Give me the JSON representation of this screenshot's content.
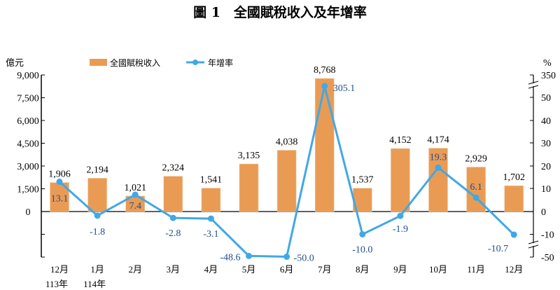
{
  "chart_data": {
    "type": "bar+line",
    "title": "圖 1　全國賦稅收入及年增率",
    "ylabel_left": "億元",
    "ylabel_right": "%",
    "categories": [
      "12月",
      "1月",
      "2月",
      "3月",
      "4月",
      "5月",
      "6月",
      "7月",
      "8月",
      "9月",
      "10月",
      "11月",
      "12月"
    ],
    "year_labels": [
      "113年",
      "114年"
    ],
    "series": [
      {
        "name": "全國賦稅收入",
        "type": "bar",
        "axis": "left",
        "color": "#E99B54",
        "values": [
          1906,
          2194,
          1021,
          2324,
          1541,
          3135,
          4038,
          8768,
          1537,
          4152,
          4174,
          2929,
          1702
        ],
        "labels": [
          "1,906",
          "2,194",
          "1,021",
          "2,324",
          "1,541",
          "3,135",
          "4,038",
          "8,768",
          "1,537",
          "4,152",
          "4,174",
          "2,929",
          "1,702"
        ]
      },
      {
        "name": "年增率",
        "type": "line",
        "axis": "right",
        "color": "#41A8E6",
        "values": [
          13.1,
          -1.8,
          7.4,
          -2.8,
          -3.1,
          -48.6,
          -50.0,
          305.1,
          -10.0,
          -1.9,
          19.3,
          6.1,
          -10.7
        ],
        "labels": [
          "13.1",
          "-1.8",
          "7.4",
          "-2.8",
          "-3.1",
          "-48.6",
          "-50.0",
          "305.1",
          "-10.0",
          "-1.9",
          "19.3",
          "6.1",
          "-10.7"
        ]
      }
    ],
    "left_axis": {
      "ticks": [
        "9,000",
        "7,500",
        "6,000",
        "4,500",
        "3,000",
        "1,500",
        "0"
      ],
      "ylim": [
        -3000,
        9000
      ]
    },
    "right_axis": {
      "ticks": [
        "350",
        "50",
        "40",
        "30",
        "20",
        "10",
        "0",
        "-10",
        "-50"
      ],
      "axis_breaks": [
        "50 to 350",
        "-10 to -50"
      ]
    },
    "legend_position": "top",
    "grid": false,
    "label_color": "#1F4E8C"
  }
}
